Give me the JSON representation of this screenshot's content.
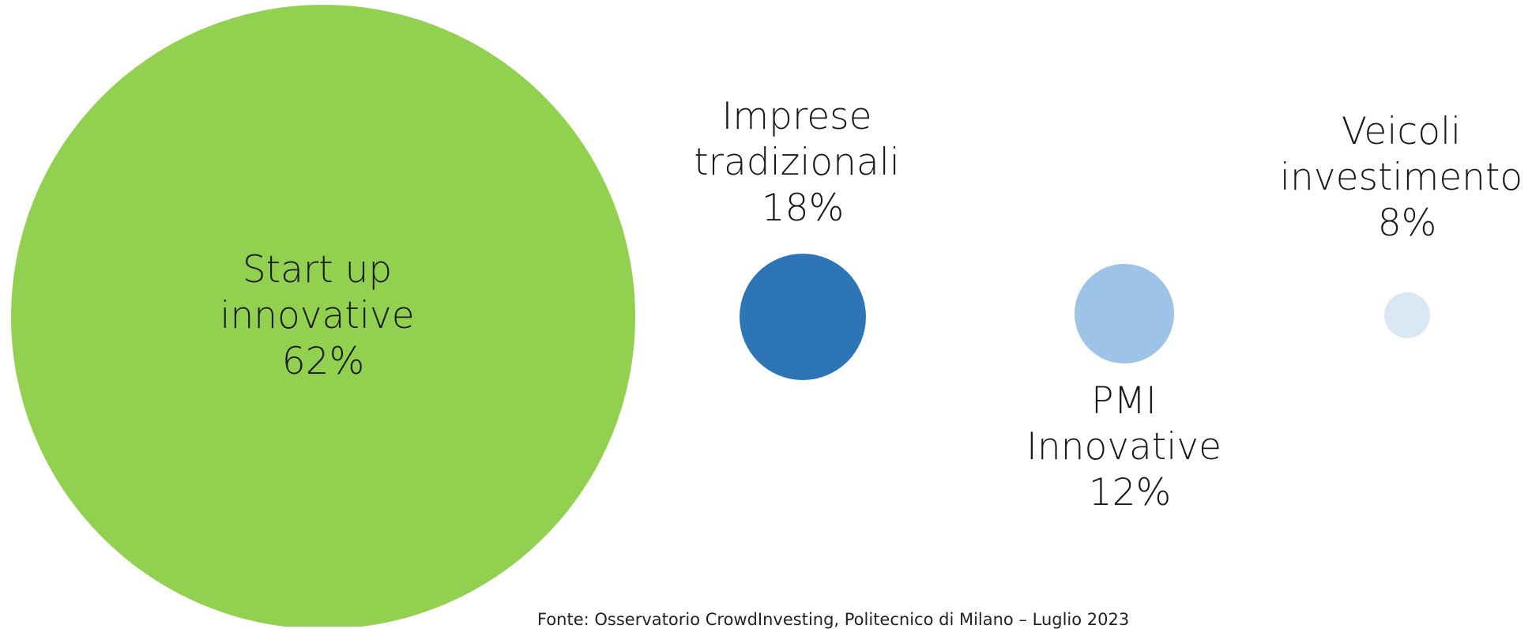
{
  "chart_data": {
    "type": "bubble",
    "series": [
      {
        "label_lines": [
          "Start up",
          "innovative",
          "62%"
        ],
        "value": 62,
        "color": "#92d050"
      },
      {
        "label_lines": [
          "Imprese",
          "tradizionali",
          "18%"
        ],
        "value": 18,
        "color": "#2e75b6"
      },
      {
        "label_lines": [
          "PMI",
          "Innovative",
          "12%"
        ],
        "value": 12,
        "color": "#9dc3e6"
      },
      {
        "label_lines": [
          "Veicoli",
          "investimento",
          "8%"
        ],
        "value": 8,
        "color": "#dae8f6"
      }
    ]
  },
  "footer": {
    "source": "Fonte: Osservatorio CrowdInvesting, Politecnico di Milano – Luglio 2023"
  }
}
